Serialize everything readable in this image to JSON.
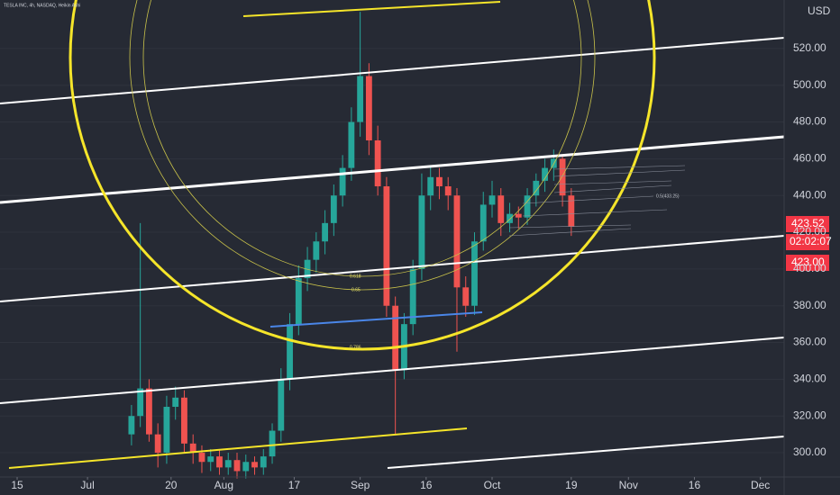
{
  "chart_data": {
    "type": "candlestick",
    "title": "TESLA INC, 4h, NASDAQ, Heikin Ashi",
    "currency": "USD",
    "up_color": "#26a69a",
    "down_color": "#ef5350",
    "x": [
      10,
      12,
      14,
      16,
      18,
      20,
      22,
      24,
      26,
      28,
      30,
      32,
      34,
      36,
      38,
      40,
      42,
      44,
      46,
      48,
      50,
      52,
      54,
      56,
      58,
      60,
      62,
      64,
      66,
      68,
      70,
      72,
      74,
      76,
      78,
      80,
      82,
      84,
      86,
      88,
      90,
      92,
      94,
      96,
      98,
      100,
      102,
      104,
      106,
      108,
      110
    ],
    "open": [
      310,
      320,
      335,
      310,
      300,
      325,
      330,
      305,
      300,
      295,
      298,
      292,
      296,
      290,
      295,
      292,
      298,
      312,
      340,
      370,
      395,
      405,
      415,
      425,
      440,
      455,
      480,
      505,
      470,
      445,
      380,
      345,
      370,
      400,
      440,
      450,
      445,
      440,
      390,
      380,
      415,
      435,
      440,
      425,
      430,
      428,
      440,
      448,
      455,
      460,
      440
    ],
    "high": [
      326,
      425,
      340,
      316,
      331,
      336,
      334,
      310,
      304,
      302,
      302,
      300,
      300,
      299,
      298,
      302,
      316,
      346,
      376,
      402,
      412,
      420,
      432,
      446,
      462,
      488,
      540,
      512,
      478,
      450,
      385,
      376,
      405,
      452,
      456,
      455,
      450,
      444,
      396,
      420,
      442,
      448,
      444,
      436,
      434,
      444,
      452,
      460,
      465,
      462,
      444
    ],
    "low": [
      304,
      314,
      306,
      292,
      294,
      318,
      300,
      294,
      289,
      290,
      288,
      288,
      286,
      286,
      288,
      288,
      294,
      306,
      334,
      364,
      388,
      398,
      408,
      418,
      434,
      448,
      472,
      462,
      440,
      374,
      310,
      340,
      364,
      394,
      432,
      438,
      432,
      355,
      374,
      375,
      410,
      428,
      418,
      420,
      422,
      424,
      434,
      442,
      448,
      434,
      418
    ],
    "close": [
      320,
      335,
      310,
      300,
      325,
      330,
      305,
      300,
      295,
      298,
      292,
      296,
      290,
      295,
      292,
      298,
      312,
      340,
      370,
      395,
      405,
      415,
      425,
      440,
      455,
      480,
      505,
      470,
      445,
      380,
      345,
      370,
      400,
      440,
      450,
      445,
      440,
      390,
      380,
      415,
      435,
      440,
      425,
      430,
      428,
      440,
      448,
      455,
      460,
      440,
      423
    ],
    "xlim": [
      -19.9,
      158.4
    ],
    "xticks": [
      {
        "value": -16,
        "label": "15"
      },
      {
        "value": 0,
        "label": "Jul"
      },
      {
        "value": 19,
        "label": "20"
      },
      {
        "value": 31,
        "label": "Aug"
      },
      {
        "value": 47,
        "label": "17"
      },
      {
        "value": 62,
        "label": "Sep"
      },
      {
        "value": 77,
        "label": "16"
      },
      {
        "value": 92,
        "label": "Oct"
      },
      {
        "value": 110,
        "label": "19"
      },
      {
        "value": 123,
        "label": "Nov"
      },
      {
        "value": 138,
        "label": "16"
      },
      {
        "value": 153,
        "label": "Dec"
      }
    ],
    "ylim": [
      286.8,
      546.4
    ],
    "yticks": [
      {
        "value": 300,
        "label": "300.00"
      },
      {
        "value": 320,
        "label": "320.00"
      },
      {
        "value": 340,
        "label": "340.00"
      },
      {
        "value": 360,
        "label": "360.00"
      },
      {
        "value": 380,
        "label": "380.00"
      },
      {
        "value": 400,
        "label": "400.00"
      },
      {
        "value": 420,
        "label": "420.00"
      },
      {
        "value": 440,
        "label": "440.00"
      },
      {
        "value": 460,
        "label": "460.00"
      },
      {
        "value": 480,
        "label": "480.00"
      },
      {
        "value": 500,
        "label": "500.00"
      },
      {
        "value": 520,
        "label": "520.00"
      }
    ],
    "annotations": [
      "0.618",
      "0.65",
      "0.786",
      "0.5(433.25)"
    ],
    "price_tags": [
      "423.52",
      "02:02:07",
      "423.00"
    ]
  }
}
